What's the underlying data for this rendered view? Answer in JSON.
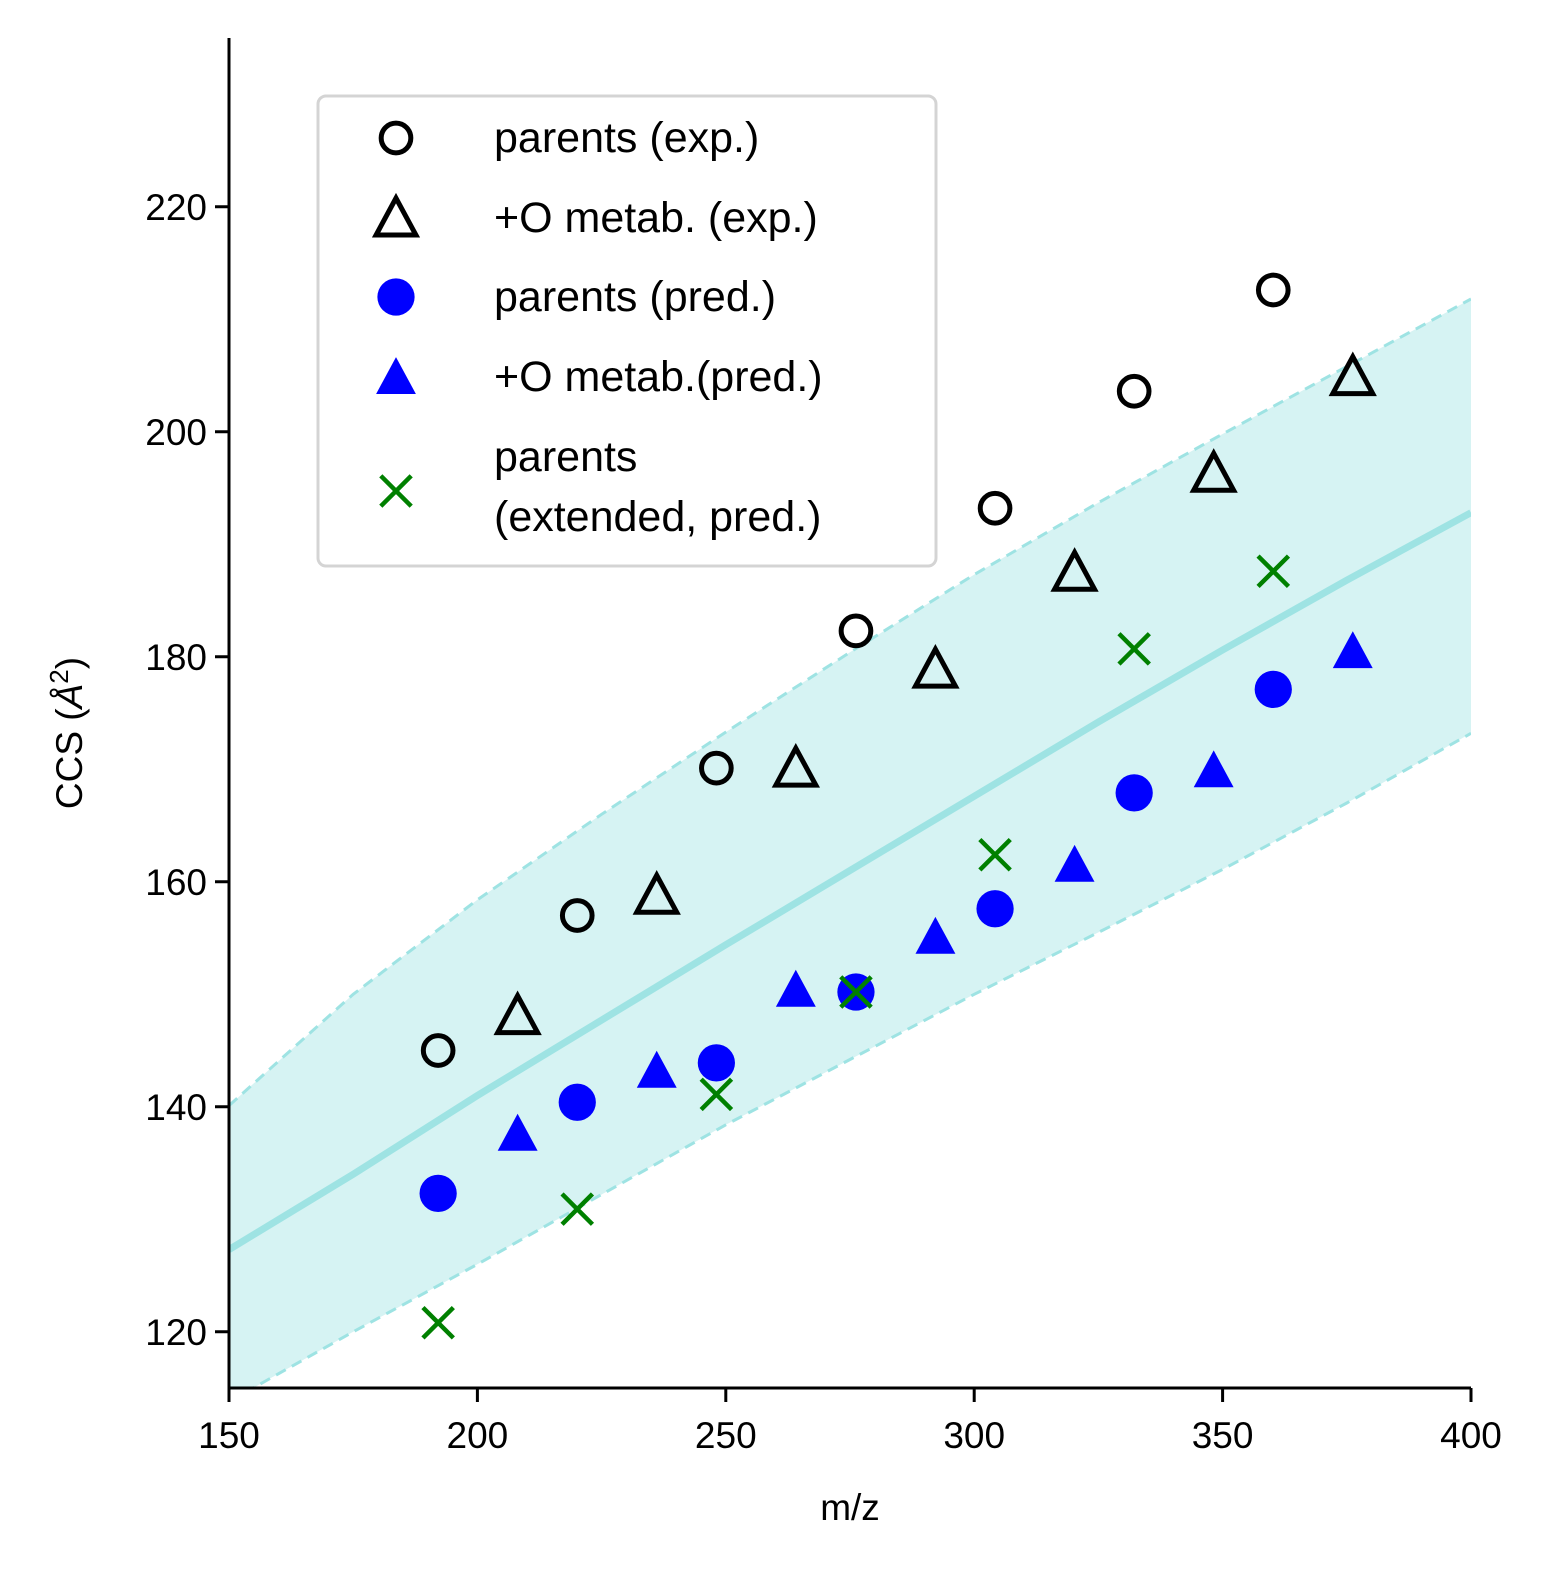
{
  "chart_data": {
    "type": "scatter",
    "title": "",
    "xlabel": "m/z",
    "ylabel_prefix": "CCS (",
    "ylabel_unit": "Å",
    "ylabel_exp": "2",
    "ylabel_suffix": ")",
    "xlim": [
      150,
      400
    ],
    "ylim": [
      115,
      235
    ],
    "xticks": [
      150,
      200,
      250,
      300,
      350,
      400
    ],
    "yticks": [
      120,
      140,
      160,
      180,
      200,
      220
    ],
    "grid": false,
    "legend_position": "top-left",
    "band": {
      "color": "#9ee3e3",
      "fill_color": "#d6f3f3",
      "center": [
        [
          150,
          127.3
        ],
        [
          175,
          134
        ],
        [
          200,
          141
        ],
        [
          225,
          147.7
        ],
        [
          250,
          154.4
        ],
        [
          275,
          161
        ],
        [
          300,
          167.6
        ],
        [
          325,
          174.2
        ],
        [
          350,
          180.6
        ],
        [
          375,
          186.8
        ],
        [
          400,
          192.8
        ]
      ],
      "upper": [
        [
          150,
          140.1
        ],
        [
          175,
          150
        ],
        [
          200,
          158.4
        ],
        [
          225,
          166
        ],
        [
          250,
          173.3
        ],
        [
          275,
          180.4
        ],
        [
          300,
          187.3
        ],
        [
          325,
          193.7
        ],
        [
          350,
          199.8
        ],
        [
          375,
          205.8
        ],
        [
          400,
          211.8
        ]
      ],
      "lower": [
        [
          150,
          113.8
        ],
        [
          175,
          120
        ],
        [
          200,
          126
        ],
        [
          225,
          132.2
        ],
        [
          250,
          138.4
        ],
        [
          275,
          144.2
        ],
        [
          300,
          150
        ],
        [
          325,
          155.5
        ],
        [
          350,
          161.1
        ],
        [
          375,
          167
        ],
        [
          400,
          173.2
        ]
      ]
    },
    "series": [
      {
        "name": "parents (exp.)",
        "marker": "circle-open",
        "color": "#000000",
        "points": [
          [
            192.1,
            145
          ],
          [
            220.1,
            157
          ],
          [
            248.1,
            170.1
          ],
          [
            276.2,
            182.3
          ],
          [
            304.2,
            193.2
          ],
          [
            332.2,
            203.6
          ],
          [
            360.2,
            212.6
          ]
        ]
      },
      {
        "name": "+O metab. (exp.)",
        "marker": "triangle-open",
        "color": "#000000",
        "points": [
          [
            208.1,
            148.1
          ],
          [
            236.1,
            158.8
          ],
          [
            264.1,
            170.1
          ],
          [
            292.2,
            178.9
          ],
          [
            320.2,
            187.5
          ],
          [
            348.2,
            196.3
          ],
          [
            376.2,
            204.9
          ]
        ]
      },
      {
        "name": "parents (pred.)",
        "marker": "circle-filled",
        "color": "#0000ff",
        "points": [
          [
            192.1,
            132.3
          ],
          [
            220.1,
            140.4
          ],
          [
            248.1,
            143.9
          ],
          [
            276.2,
            150.2
          ],
          [
            304.2,
            157.6
          ],
          [
            332.2,
            167.9
          ],
          [
            360.2,
            177.1
          ]
        ]
      },
      {
        "name": "+O metab.(pred.)",
        "marker": "triangle-filled",
        "color": "#0000ff",
        "points": [
          [
            208.1,
            137.6
          ],
          [
            236.1,
            143.2
          ],
          [
            264.1,
            150.4
          ],
          [
            292.2,
            155.1
          ],
          [
            320.2,
            161.5
          ],
          [
            348.2,
            169.9
          ],
          [
            376.2,
            180.5
          ]
        ]
      },
      {
        "name": "parents\n(extended, pred.)",
        "marker": "x",
        "color": "#008000",
        "points": [
          [
            192.1,
            120.8
          ],
          [
            220.1,
            130.9
          ],
          [
            248.1,
            141.1
          ],
          [
            276.2,
            150.2
          ],
          [
            304.2,
            162.4
          ],
          [
            332.2,
            180.7
          ],
          [
            360.2,
            187.6
          ]
        ]
      }
    ]
  }
}
